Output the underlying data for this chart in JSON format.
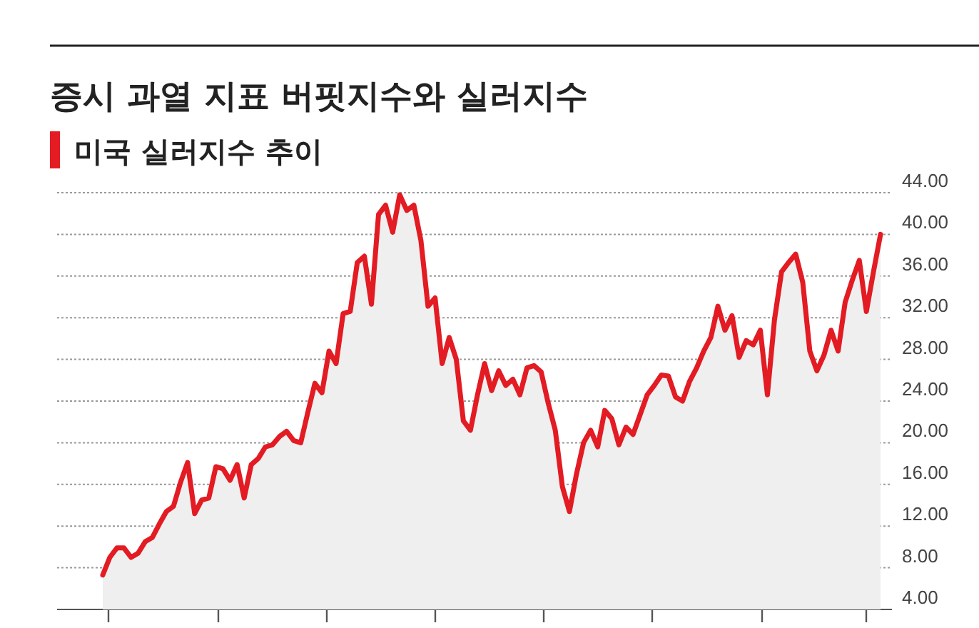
{
  "chart_data": {
    "type": "area",
    "title": "증시 과열 지표 버핏지수와 실러지수",
    "subtitle": "미국 실러지수 추이",
    "categories": [
      null,
      null,
      null,
      null,
      null,
      null,
      null,
      null,
      null,
      null,
      null,
      null,
      null,
      null,
      null,
      null,
      null,
      null,
      null,
      null,
      null,
      null,
      null,
      null,
      null,
      null,
      null,
      null,
      null,
      null,
      null,
      null,
      null,
      null,
      null,
      null,
      null,
      null,
      null,
      null,
      null,
      null,
      null,
      null,
      null,
      null,
      null,
      null,
      null,
      null,
      null,
      null,
      null,
      null,
      null,
      null,
      null,
      null,
      null,
      null,
      null,
      null,
      null,
      null,
      null,
      null,
      null,
      null,
      null,
      null,
      null,
      null,
      null,
      null,
      null,
      null,
      null,
      null,
      null,
      null,
      null,
      null,
      null,
      null,
      null,
      null,
      null,
      null,
      null,
      null,
      null,
      null,
      null,
      null,
      null,
      null,
      null,
      null,
      null,
      null,
      null,
      null,
      null,
      null,
      null,
      null,
      null,
      null,
      null,
      null,
      null
    ],
    "series": [
      {
        "color": "#e31b23",
        "values": [
          7.3,
          9.0,
          9.9,
          9.9,
          9.0,
          9.4,
          10.5,
          10.9,
          12.2,
          13.4,
          13.9,
          16.2,
          18.1,
          13.2,
          14.5,
          14.7,
          17.7,
          17.5,
          16.4,
          17.9,
          14.7,
          17.9,
          18.5,
          19.6,
          19.8,
          20.6,
          21.1,
          20.2,
          20.0,
          22.9,
          25.7,
          24.8,
          28.8,
          27.6,
          32.4,
          32.6,
          37.3,
          37.9,
          33.3,
          41.9,
          42.8,
          40.2,
          43.8,
          42.3,
          42.8,
          39.4,
          33.1,
          33.9,
          27.6,
          30.1,
          28.0,
          22.1,
          21.2,
          24.6,
          27.6,
          25.0,
          26.9,
          25.5,
          26.1,
          24.6,
          27.2,
          27.4,
          26.8,
          23.8,
          21.2,
          15.8,
          13.4,
          17.0,
          20.0,
          21.2,
          19.6,
          23.1,
          22.3,
          19.8,
          21.5,
          20.8,
          22.7,
          24.6,
          25.5,
          26.5,
          26.4,
          24.4,
          24.0,
          25.9,
          27.2,
          28.8,
          30.1,
          33.1,
          30.8,
          32.2,
          28.2,
          29.8,
          29.4,
          30.8,
          24.6,
          31.8,
          36.4,
          37.3,
          38.1,
          35.4,
          28.8,
          26.9,
          28.4,
          30.8,
          28.8,
          33.5,
          35.6,
          37.5,
          32.6,
          36.4,
          40.0
        ]
      }
    ],
    "ylim": [
      4,
      44
    ],
    "yticks": [
      {
        "value": 4,
        "label": "4.00"
      },
      {
        "value": 8,
        "label": "8.00"
      },
      {
        "value": 12,
        "label": "12.00"
      },
      {
        "value": 16,
        "label": "16.00"
      },
      {
        "value": 20,
        "label": "20.00"
      },
      {
        "value": 24,
        "label": "24.00"
      },
      {
        "value": 28,
        "label": "28.00"
      },
      {
        "value": 32,
        "label": "32.00"
      },
      {
        "value": 36,
        "label": "36.00"
      },
      {
        "value": 40,
        "label": "40.00"
      },
      {
        "value": 44,
        "label": "44.00"
      }
    ],
    "grid": "y"
  }
}
